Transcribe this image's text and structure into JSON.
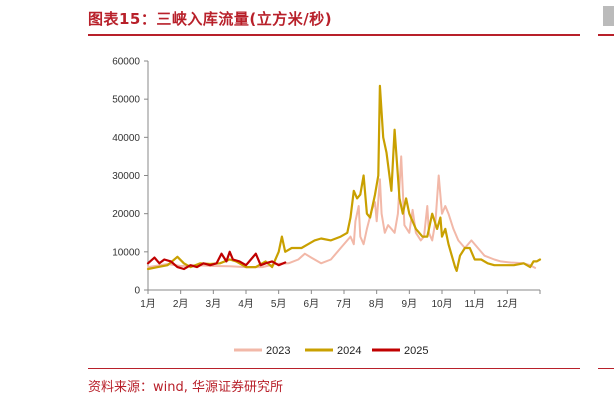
{
  "header": {
    "title": "图表15：三峡入库流量(立方米/秒)"
  },
  "footer": {
    "source": "资料来源：wind, 华源证券研究所"
  },
  "chart_data": {
    "type": "line",
    "xlabel": "",
    "ylabel": "",
    "ylim": [
      0,
      60000
    ],
    "yticks": [
      0,
      10000,
      20000,
      30000,
      40000,
      50000,
      60000
    ],
    "xlim": [
      1,
      13
    ],
    "xticks": [
      1,
      2,
      3,
      4,
      5,
      6,
      7,
      8,
      9,
      10,
      11,
      12
    ],
    "xtick_labels": [
      "1月",
      "2月",
      "3月",
      "4月",
      "5月",
      "6月",
      "7月",
      "8月",
      "9月",
      "10月",
      "11月",
      "12月"
    ],
    "legend_position": "bottom",
    "grid": false,
    "series": [
      {
        "name": "2023",
        "color": "#f2b8a8",
        "points": [
          [
            1.0,
            6000
          ],
          [
            1.3,
            6400
          ],
          [
            1.6,
            6800
          ],
          [
            2.0,
            6300
          ],
          [
            2.5,
            6500
          ],
          [
            3.0,
            6300
          ],
          [
            3.5,
            6200
          ],
          [
            4.0,
            6000
          ],
          [
            4.5,
            6000
          ],
          [
            4.9,
            6800
          ],
          [
            5.3,
            7000
          ],
          [
            5.6,
            8000
          ],
          [
            5.8,
            9500
          ],
          [
            6.0,
            8500
          ],
          [
            6.3,
            7000
          ],
          [
            6.6,
            8000
          ],
          [
            6.9,
            11000
          ],
          [
            7.2,
            14000
          ],
          [
            7.3,
            12000
          ],
          [
            7.35,
            18000
          ],
          [
            7.45,
            22000
          ],
          [
            7.5,
            14000
          ],
          [
            7.6,
            12000
          ],
          [
            7.7,
            16000
          ],
          [
            7.85,
            21000
          ],
          [
            7.95,
            23000
          ],
          [
            8.0,
            18000
          ],
          [
            8.1,
            29000
          ],
          [
            8.15,
            20000
          ],
          [
            8.25,
            15000
          ],
          [
            8.35,
            17000
          ],
          [
            8.45,
            16000
          ],
          [
            8.55,
            15000
          ],
          [
            8.65,
            20000
          ],
          [
            8.75,
            35000
          ],
          [
            8.85,
            17000
          ],
          [
            9.0,
            15000
          ],
          [
            9.1,
            21000
          ],
          [
            9.2,
            15000
          ],
          [
            9.35,
            13000
          ],
          [
            9.45,
            14000
          ],
          [
            9.55,
            22000
          ],
          [
            9.6,
            15000
          ],
          [
            9.7,
            13000
          ],
          [
            9.8,
            18000
          ],
          [
            9.9,
            30000
          ],
          [
            10.0,
            20000
          ],
          [
            10.1,
            22000
          ],
          [
            10.2,
            20000
          ],
          [
            10.35,
            16000
          ],
          [
            10.5,
            13000
          ],
          [
            10.7,
            11000
          ],
          [
            10.9,
            13000
          ],
          [
            11.1,
            11000
          ],
          [
            11.3,
            9000
          ],
          [
            11.6,
            8000
          ],
          [
            11.8,
            7500
          ],
          [
            12.1,
            7200
          ],
          [
            12.5,
            7000
          ],
          [
            12.7,
            6500
          ],
          [
            12.85,
            5800
          ]
        ]
      },
      {
        "name": "2024",
        "color": "#c9a000",
        "points": [
          [
            1.0,
            5500
          ],
          [
            1.3,
            6000
          ],
          [
            1.6,
            6500
          ],
          [
            1.9,
            8700
          ],
          [
            2.1,
            7000
          ],
          [
            2.3,
            6000
          ],
          [
            2.6,
            7000
          ],
          [
            2.9,
            6800
          ],
          [
            3.2,
            7000
          ],
          [
            3.5,
            8000
          ],
          [
            3.7,
            7500
          ],
          [
            4.0,
            6000
          ],
          [
            4.3,
            6000
          ],
          [
            4.6,
            7500
          ],
          [
            4.8,
            6000
          ],
          [
            5.0,
            10000
          ],
          [
            5.1,
            14000
          ],
          [
            5.2,
            10000
          ],
          [
            5.4,
            11000
          ],
          [
            5.7,
            11000
          ],
          [
            5.9,
            12000
          ],
          [
            6.1,
            13000
          ],
          [
            6.3,
            13500
          ],
          [
            6.6,
            13000
          ],
          [
            6.9,
            14000
          ],
          [
            7.1,
            15000
          ],
          [
            7.2,
            19000
          ],
          [
            7.3,
            26000
          ],
          [
            7.4,
            24000
          ],
          [
            7.5,
            25000
          ],
          [
            7.6,
            30000
          ],
          [
            7.7,
            20000
          ],
          [
            7.8,
            19000
          ],
          [
            7.95,
            25000
          ],
          [
            8.05,
            30000
          ],
          [
            8.1,
            53500
          ],
          [
            8.2,
            40000
          ],
          [
            8.3,
            36000
          ],
          [
            8.45,
            26000
          ],
          [
            8.55,
            42000
          ],
          [
            8.7,
            24000
          ],
          [
            8.8,
            20000
          ],
          [
            8.9,
            24000
          ],
          [
            9.0,
            20000
          ],
          [
            9.2,
            16000
          ],
          [
            9.4,
            14000
          ],
          [
            9.55,
            14000
          ],
          [
            9.7,
            20000
          ],
          [
            9.85,
            16000
          ],
          [
            9.95,
            19000
          ],
          [
            10.0,
            14000
          ],
          [
            10.1,
            16000
          ],
          [
            10.2,
            12000
          ],
          [
            10.3,
            9000
          ],
          [
            10.4,
            6000
          ],
          [
            10.45,
            5000
          ],
          [
            10.55,
            9000
          ],
          [
            10.7,
            11000
          ],
          [
            10.85,
            11000
          ],
          [
            11.0,
            8000
          ],
          [
            11.2,
            8000
          ],
          [
            11.4,
            7000
          ],
          [
            11.6,
            6500
          ],
          [
            11.9,
            6500
          ],
          [
            12.2,
            6500
          ],
          [
            12.5,
            7000
          ],
          [
            12.7,
            6000
          ],
          [
            12.8,
            7500
          ],
          [
            12.9,
            7500
          ],
          [
            13.0,
            8000
          ]
        ]
      },
      {
        "name": "2025",
        "color": "#c00000",
        "points": [
          [
            1.0,
            7000
          ],
          [
            1.2,
            8500
          ],
          [
            1.35,
            7000
          ],
          [
            1.5,
            8000
          ],
          [
            1.7,
            7500
          ],
          [
            1.9,
            6000
          ],
          [
            2.1,
            5500
          ],
          [
            2.3,
            6500
          ],
          [
            2.5,
            6000
          ],
          [
            2.7,
            7000
          ],
          [
            2.9,
            6500
          ],
          [
            3.1,
            7000
          ],
          [
            3.25,
            9500
          ],
          [
            3.4,
            7500
          ],
          [
            3.5,
            10000
          ],
          [
            3.6,
            8000
          ],
          [
            3.8,
            7500
          ],
          [
            4.0,
            6500
          ],
          [
            4.15,
            8000
          ],
          [
            4.3,
            9500
          ],
          [
            4.45,
            6500
          ],
          [
            4.6,
            7000
          ],
          [
            4.8,
            7500
          ],
          [
            5.0,
            6500
          ],
          [
            5.2,
            7200
          ]
        ]
      }
    ]
  }
}
